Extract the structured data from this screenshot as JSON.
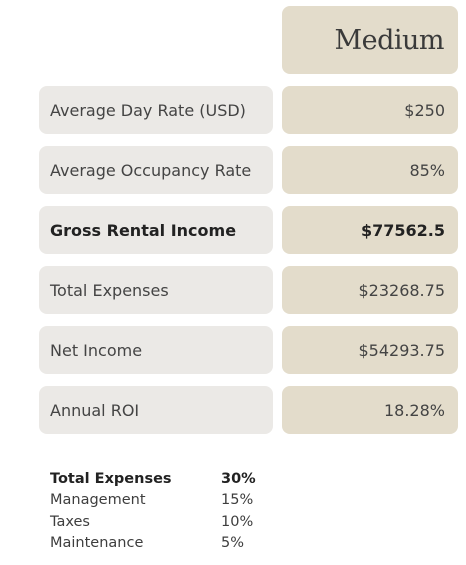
{
  "header": {
    "column_title": "Medium"
  },
  "rows": [
    {
      "label": "Average Day Rate (USD)",
      "value": "$250"
    },
    {
      "label": "Average Occupancy Rate",
      "value": "85%"
    },
    {
      "label": "Gross Rental Income",
      "value": "$77562.5"
    },
    {
      "label": "Total Expenses",
      "value": "$23268.75"
    },
    {
      "label": "Net Income",
      "value": "$54293.75"
    },
    {
      "label": "Annual ROI",
      "value": "18.28%"
    }
  ],
  "expenses": {
    "title": "Total Expenses",
    "total": "30%",
    "items": [
      {
        "label": "Management",
        "value": "15%"
      },
      {
        "label": "Taxes",
        "value": "10%"
      },
      {
        "label": "Maintenance",
        "value": "5%"
      }
    ]
  }
}
